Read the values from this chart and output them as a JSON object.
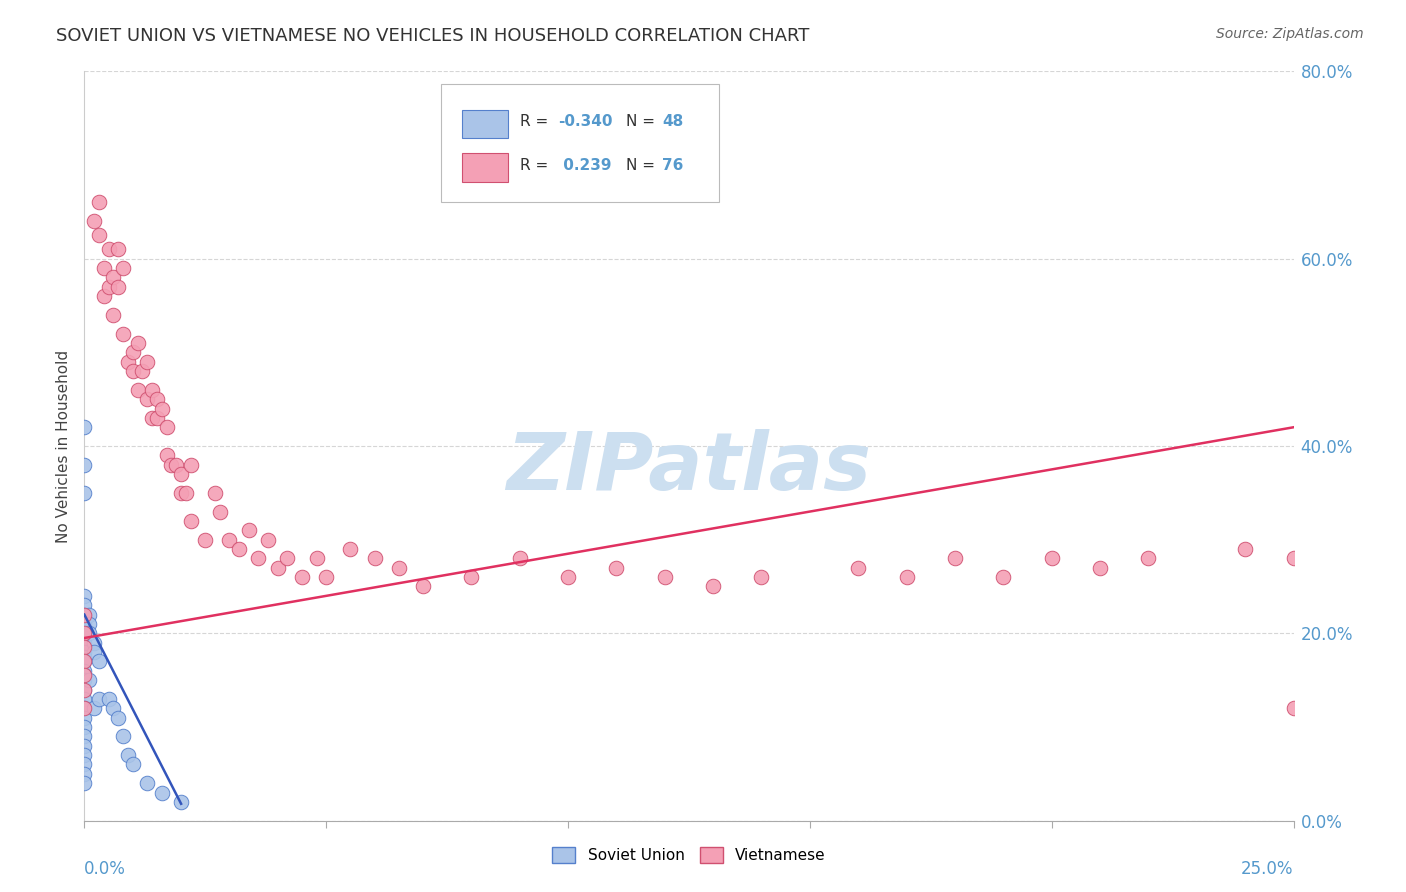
{
  "title": "SOVIET UNION VS VIETNAMESE NO VEHICLES IN HOUSEHOLD CORRELATION CHART",
  "source": "Source: ZipAtlas.com",
  "ylabel_label": "No Vehicles in Household",
  "xmin": 0.0,
  "xmax": 0.25,
  "ymin": 0.0,
  "ymax": 0.8,
  "yticks": [
    0.0,
    0.2,
    0.4,
    0.6,
    0.8
  ],
  "xticks": [
    0.0,
    0.05,
    0.1,
    0.15,
    0.2,
    0.25
  ],
  "soviet_R": -0.34,
  "soviet_N": 48,
  "vietnamese_R": 0.239,
  "vietnamese_N": 76,
  "soviet_color": "#aac4e8",
  "soviet_edge_color": "#5580cc",
  "vietnamese_color": "#f4a0b5",
  "vietnamese_edge_color": "#d05070",
  "soviet_line_color": "#3355bb",
  "vietnamese_line_color": "#e03060",
  "background_color": "#ffffff",
  "grid_color": "#cccccc",
  "watermark_color": "#ccdff0",
  "axis_label_color": "#5599cc",
  "title_color": "#333333",
  "soviet_points_x": [
    0.0,
    0.0,
    0.0,
    0.0,
    0.0,
    0.0,
    0.0,
    0.0,
    0.0,
    0.0,
    0.0,
    0.0,
    0.0,
    0.0,
    0.0,
    0.0,
    0.0,
    0.0,
    0.0,
    0.0,
    0.0,
    0.0,
    0.0,
    0.0,
    0.0,
    0.0,
    0.0,
    0.0,
    0.0,
    0.0,
    0.001,
    0.001,
    0.001,
    0.001,
    0.002,
    0.002,
    0.002,
    0.003,
    0.003,
    0.005,
    0.006,
    0.007,
    0.008,
    0.009,
    0.01,
    0.013,
    0.016,
    0.02
  ],
  "soviet_points_y": [
    0.42,
    0.38,
    0.35,
    0.24,
    0.23,
    0.22,
    0.215,
    0.21,
    0.205,
    0.2,
    0.195,
    0.19,
    0.185,
    0.18,
    0.175,
    0.17,
    0.16,
    0.155,
    0.15,
    0.14,
    0.13,
    0.12,
    0.11,
    0.1,
    0.09,
    0.08,
    0.07,
    0.06,
    0.05,
    0.04,
    0.22,
    0.21,
    0.2,
    0.15,
    0.19,
    0.18,
    0.12,
    0.17,
    0.13,
    0.13,
    0.12,
    0.11,
    0.09,
    0.07,
    0.06,
    0.04,
    0.03,
    0.02
  ],
  "vietnamese_points_x": [
    0.0,
    0.0,
    0.0,
    0.0,
    0.0,
    0.0,
    0.0,
    0.002,
    0.003,
    0.003,
    0.004,
    0.004,
    0.005,
    0.005,
    0.006,
    0.006,
    0.007,
    0.007,
    0.008,
    0.008,
    0.009,
    0.01,
    0.01,
    0.011,
    0.011,
    0.012,
    0.013,
    0.013,
    0.014,
    0.014,
    0.015,
    0.015,
    0.016,
    0.017,
    0.017,
    0.018,
    0.019,
    0.02,
    0.02,
    0.021,
    0.022,
    0.022,
    0.025,
    0.027,
    0.028,
    0.03,
    0.032,
    0.034,
    0.036,
    0.038,
    0.04,
    0.042,
    0.045,
    0.048,
    0.05,
    0.055,
    0.06,
    0.065,
    0.07,
    0.08,
    0.09,
    0.1,
    0.11,
    0.12,
    0.13,
    0.14,
    0.16,
    0.17,
    0.18,
    0.19,
    0.2,
    0.21,
    0.22,
    0.24,
    0.25,
    0.25
  ],
  "vietnamese_points_y": [
    0.22,
    0.2,
    0.185,
    0.17,
    0.155,
    0.14,
    0.12,
    0.64,
    0.66,
    0.625,
    0.59,
    0.56,
    0.61,
    0.57,
    0.58,
    0.54,
    0.61,
    0.57,
    0.59,
    0.52,
    0.49,
    0.48,
    0.5,
    0.51,
    0.46,
    0.48,
    0.49,
    0.45,
    0.46,
    0.43,
    0.45,
    0.43,
    0.44,
    0.42,
    0.39,
    0.38,
    0.38,
    0.35,
    0.37,
    0.35,
    0.32,
    0.38,
    0.3,
    0.35,
    0.33,
    0.3,
    0.29,
    0.31,
    0.28,
    0.3,
    0.27,
    0.28,
    0.26,
    0.28,
    0.26,
    0.29,
    0.28,
    0.27,
    0.25,
    0.26,
    0.28,
    0.26,
    0.27,
    0.26,
    0.25,
    0.26,
    0.27,
    0.26,
    0.28,
    0.26,
    0.28,
    0.27,
    0.28,
    0.29,
    0.28,
    0.12
  ]
}
